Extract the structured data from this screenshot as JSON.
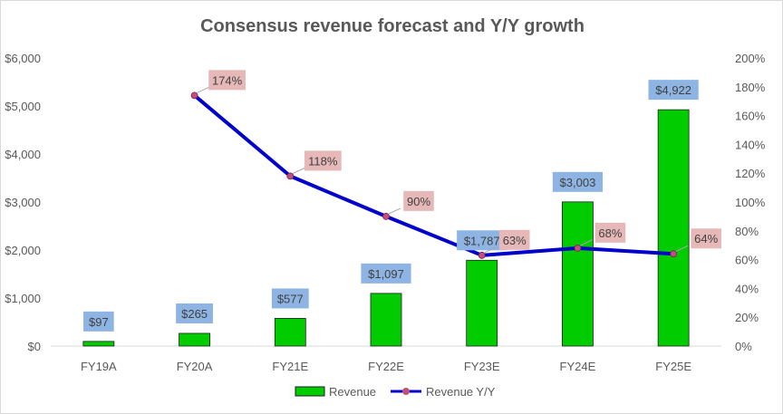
{
  "chart_data": {
    "type": "bar",
    "title": "Consensus revenue forecast and Y/Y growth",
    "categories": [
      "FY19A",
      "FY20A",
      "FY21E",
      "FY22E",
      "FY23E",
      "FY24E",
      "FY25E"
    ],
    "series": [
      {
        "name": "Revenue",
        "type": "bar",
        "axis": "left",
        "color": "#00cc00",
        "values": [
          97,
          265,
          577,
          1097,
          1787,
          3003,
          4922
        ],
        "labels": [
          "$97",
          "$265",
          "$577",
          "$1,097",
          "$1,787",
          "$3,003",
          "$4,922"
        ]
      },
      {
        "name": "Revenue Y/Y",
        "type": "line",
        "axis": "right",
        "color": "#0000cc",
        "marker_color": "#c0507a",
        "values": [
          null,
          174,
          118,
          90,
          63,
          68,
          64
        ],
        "labels": [
          "",
          "174%",
          "118%",
          "90%",
          "63%",
          "68%",
          "64%"
        ]
      }
    ],
    "y_left": {
      "ylim": [
        0,
        6000
      ],
      "ticks": [
        0,
        1000,
        2000,
        3000,
        4000,
        5000,
        6000
      ],
      "tick_labels": [
        "$0",
        "$1,000",
        "$2,000",
        "$3,000",
        "$4,000",
        "$5,000",
        "$6,000"
      ]
    },
    "y_right": {
      "ylim": [
        0,
        200
      ],
      "ticks": [
        0,
        20,
        40,
        60,
        80,
        100,
        120,
        140,
        160,
        180,
        200
      ],
      "tick_labels": [
        "0%",
        "20%",
        "40%",
        "60%",
        "80%",
        "100%",
        "120%",
        "140%",
        "160%",
        "180%",
        "200%"
      ]
    },
    "grid": false,
    "legend": "bottom",
    "bar_label_bg": "#8eb4e3",
    "line_label_bg": "#e6b9b8"
  }
}
